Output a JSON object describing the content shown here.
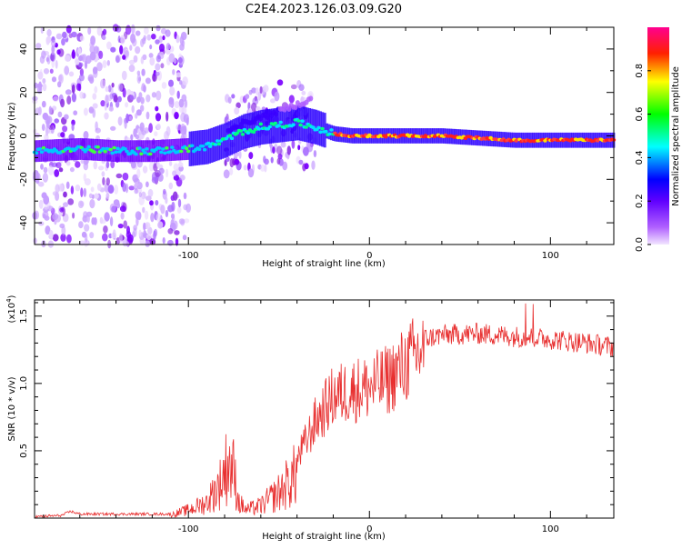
{
  "title": "C2E4.2023.126.03.09.G20",
  "chart_data": [
    {
      "type": "heatmap",
      "name": "spectrogram",
      "xlabel": "Height of straight line (km)",
      "ylabel": "Frequency (Hz)",
      "xlim": [
        -185,
        135
      ],
      "ylim": [
        -50,
        50
      ],
      "xticks": [
        -100,
        0,
        100
      ],
      "yticks": [
        -40,
        -20,
        0,
        20,
        40
      ],
      "colorbar": {
        "label": "Normalized spectral amplitude",
        "range": [
          0,
          1
        ],
        "ticks": [
          0.0,
          0.2,
          0.4,
          0.6,
          0.8
        ],
        "tick_labels": [
          "0.0",
          "0.2",
          "0.4",
          "0.6",
          "0.8"
        ],
        "colors": [
          "#f2e6ff",
          "#8b00ff",
          "#0000ff",
          "#00ffff",
          "#00ff00",
          "#ffff00",
          "#ff0000",
          "#ff00aa"
        ]
      },
      "ridge": {
        "x": [
          -185,
          -160,
          -140,
          -120,
          -100,
          -90,
          -80,
          -70,
          -60,
          -50,
          -40,
          -30,
          -20,
          -10,
          0,
          20,
          40,
          60,
          80,
          100,
          135
        ],
        "y": [
          -7,
          -6,
          -7,
          -7,
          -6,
          -5,
          -2,
          2,
          4,
          5,
          6,
          4,
          1,
          0,
          0,
          0,
          0,
          -1,
          -2,
          -2,
          -2
        ]
      },
      "noise_regions": [
        [
          -185,
          -100
        ],
        [
          -80,
          -30
        ]
      ]
    },
    {
      "type": "line",
      "name": "snr",
      "xlabel": "Height of straight line (km)",
      "ylabel": "SNR (10 * v/v)",
      "multiplier": "(x10^4)",
      "multiplier_base": "(x10",
      "multiplier_exp": "4",
      "xlim": [
        -185,
        135
      ],
      "ylim": [
        0,
        1.62
      ],
      "xticks": [
        -100,
        0,
        100
      ],
      "yticks": [
        0.5,
        1.0,
        1.5
      ],
      "ytick_labels": [
        "0.5",
        "1.0",
        "1.5"
      ],
      "color": "#e83030",
      "envelope": {
        "x": [
          -185,
          -170,
          -165,
          -160,
          -110,
          -100,
          -90,
          -82,
          -78,
          -75,
          -72,
          -68,
          -60,
          -50,
          -42,
          -35,
          -30,
          -25,
          -20,
          -10,
          0,
          10,
          20,
          30,
          40,
          60,
          80,
          100,
          120,
          135
        ],
        "y": [
          0.01,
          0.02,
          0.05,
          0.03,
          0.03,
          0.08,
          0.15,
          0.35,
          0.55,
          0.45,
          0.15,
          0.08,
          0.12,
          0.25,
          0.4,
          0.6,
          0.75,
          0.85,
          0.95,
          1.0,
          1.02,
          1.08,
          1.2,
          1.33,
          1.36,
          1.37,
          1.35,
          1.33,
          1.3,
          1.27
        ]
      }
    }
  ]
}
